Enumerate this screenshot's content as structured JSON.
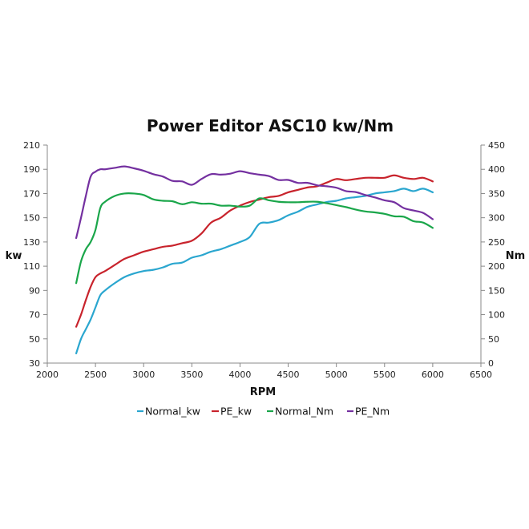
{
  "chart_data": {
    "type": "line",
    "title": "Power Editor ASC10 kw/Nm",
    "xlabel": "RPM",
    "ylabel": "kw",
    "y2label": "Nm",
    "xlim": [
      2000,
      6500
    ],
    "ylim": [
      30,
      210
    ],
    "y2lim": [
      0,
      450
    ],
    "x_ticks": [
      2000,
      2500,
      3000,
      3500,
      4000,
      4500,
      5000,
      5500,
      6000,
      6500
    ],
    "y_ticks": [
      30,
      50,
      70,
      90,
      110,
      130,
      150,
      170,
      190,
      210
    ],
    "y2_ticks": [
      0,
      50,
      100,
      150,
      200,
      250,
      300,
      350,
      400,
      450
    ],
    "grid": false,
    "legend_position": "bottom",
    "series": [
      {
        "name": "Normal_kw",
        "axis": "left",
        "color": "#2aa6cf",
        "x": [
          2300,
          2350,
          2400,
          2450,
          2500,
          2550,
          2600,
          2700,
          2800,
          2900,
          3000,
          3100,
          3200,
          3300,
          3400,
          3500,
          3600,
          3700,
          3800,
          3900,
          4000,
          4100,
          4200,
          4300,
          4400,
          4500,
          4600,
          4700,
          4800,
          4900,
          5000,
          5100,
          5200,
          5300,
          5400,
          5500,
          5600,
          5700,
          5800,
          5900,
          6000
        ],
        "y": [
          38,
          50,
          58,
          66,
          76,
          86,
          90,
          96,
          101,
          104,
          106,
          107,
          109,
          112,
          113,
          117,
          119,
          122,
          124,
          127,
          130,
          134,
          145,
          146,
          148,
          152,
          155,
          159,
          161,
          163,
          164,
          166,
          167,
          168,
          170,
          171,
          172,
          174,
          172,
          174,
          171
        ]
      },
      {
        "name": "PE_kw",
        "axis": "left",
        "color": "#c8232c",
        "x": [
          2300,
          2350,
          2400,
          2450,
          2500,
          2550,
          2600,
          2700,
          2800,
          2900,
          3000,
          3100,
          3200,
          3300,
          3400,
          3500,
          3600,
          3700,
          3800,
          3900,
          4000,
          4100,
          4200,
          4300,
          4400,
          4500,
          4600,
          4700,
          4800,
          4900,
          5000,
          5100,
          5200,
          5300,
          5400,
          5500,
          5600,
          5700,
          5800,
          5900,
          6000
        ],
        "y": [
          60,
          70,
          82,
          93,
          101,
          104,
          106,
          111,
          116,
          119,
          122,
          124,
          126,
          127,
          129,
          131,
          137,
          146,
          150,
          156,
          160,
          163,
          165,
          167,
          168,
          171,
          173,
          175,
          176,
          179,
          182,
          181,
          182,
          183,
          183,
          183,
          185,
          183,
          182,
          183,
          180
        ]
      },
      {
        "name": "Normal_Nm",
        "axis": "right",
        "color": "#1aa64a",
        "x": [
          2300,
          2350,
          2400,
          2450,
          2500,
          2550,
          2600,
          2700,
          2800,
          2900,
          3000,
          3100,
          3200,
          3300,
          3400,
          3500,
          3600,
          3700,
          3800,
          3900,
          4000,
          4100,
          4200,
          4300,
          4400,
          4500,
          4600,
          4700,
          4800,
          4900,
          5000,
          5100,
          5200,
          5300,
          5400,
          5500,
          5600,
          5700,
          5800,
          5900,
          6000
        ],
        "y": [
          165,
          210,
          235,
          250,
          275,
          320,
          333,
          345,
          350,
          350,
          347,
          338,
          335,
          334,
          328,
          332,
          329,
          329,
          325,
          325,
          323,
          325,
          340,
          336,
          333,
          332,
          332,
          333,
          333,
          330,
          326,
          322,
          317,
          313,
          311,
          308,
          303,
          302,
          293,
          290,
          279
        ]
      },
      {
        "name": "PE_Nm",
        "axis": "right",
        "color": "#7430a0",
        "x": [
          2300,
          2350,
          2400,
          2450,
          2500,
          2550,
          2600,
          2700,
          2800,
          2900,
          3000,
          3100,
          3200,
          3300,
          3400,
          3500,
          3600,
          3700,
          3800,
          3900,
          4000,
          4100,
          4200,
          4300,
          4400,
          4500,
          4600,
          4700,
          4800,
          4900,
          5000,
          5100,
          5200,
          5300,
          5400,
          5500,
          5600,
          5700,
          5800,
          5900,
          6000
        ],
        "y": [
          258,
          300,
          345,
          385,
          395,
          400,
          400,
          403,
          406,
          402,
          397,
          390,
          385,
          376,
          375,
          368,
          380,
          390,
          389,
          391,
          396,
          392,
          389,
          386,
          378,
          378,
          372,
          372,
          367,
          365,
          362,
          355,
          353,
          347,
          342,
          336,
          332,
          320,
          315,
          310,
          297
        ]
      }
    ]
  }
}
